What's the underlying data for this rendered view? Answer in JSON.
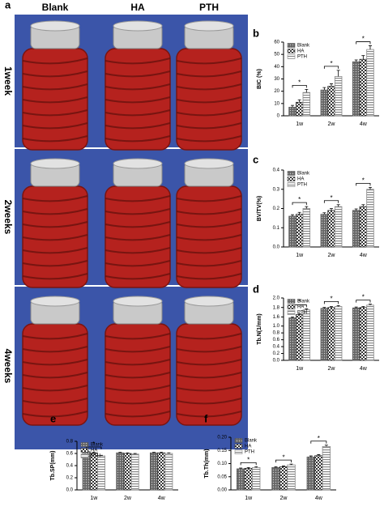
{
  "figure_a": {
    "label": "a",
    "columns": [
      "Blank",
      "HA",
      "PTH"
    ],
    "rows": [
      "1week",
      "2weeks",
      "4weeks"
    ]
  },
  "chart_data": [
    {
      "type": "bar",
      "label": "b",
      "ylabel": "BIC (%)",
      "categories": [
        "1w",
        "2w",
        "4w"
      ],
      "series": [
        {
          "name": "Blank",
          "color": "#555555",
          "pattern": "dots",
          "values": [
            7,
            21,
            44
          ],
          "errors": [
            1.5,
            2,
            1.5
          ]
        },
        {
          "name": "HA",
          "color": "#333333",
          "pattern": "checker",
          "values": [
            11,
            24,
            46
          ],
          "errors": [
            2,
            2,
            3
          ]
        },
        {
          "name": "PTH",
          "color": "#888888",
          "pattern": "stripes",
          "values": [
            19,
            32,
            54
          ],
          "errors": [
            2.5,
            5,
            3
          ]
        }
      ],
      "ylim": [
        0,
        60
      ],
      "yticks": [
        0,
        10,
        20,
        30,
        40,
        50,
        60
      ],
      "annotations": [
        "*",
        "*",
        "*"
      ]
    },
    {
      "type": "bar",
      "label": "c",
      "ylabel": "BV/TV(%)",
      "categories": [
        "1w",
        "2w",
        "4w"
      ],
      "series": [
        {
          "name": "Blank",
          "color": "#555555",
          "pattern": "dots",
          "values": [
            0.16,
            0.17,
            0.19
          ],
          "errors": [
            0.008,
            0.008,
            0.008
          ]
        },
        {
          "name": "HA",
          "color": "#333333",
          "pattern": "checker",
          "values": [
            0.17,
            0.19,
            0.21
          ],
          "errors": [
            0.01,
            0.01,
            0.01
          ]
        },
        {
          "name": "PTH",
          "color": "#888888",
          "pattern": "stripes",
          "values": [
            0.2,
            0.21,
            0.3
          ],
          "errors": [
            0.01,
            0.01,
            0.01
          ]
        }
      ],
      "ylim": [
        0,
        0.4
      ],
      "yticks": [
        {
          "value": 0,
          "label": "0.0"
        },
        0.1,
        0.2,
        0.3,
        0.4
      ],
      "annotations": [
        "*",
        "*",
        "*"
      ]
    },
    {
      "type": "bar",
      "label": "d",
      "ylabel": "Tb.N(1/mm)",
      "categories": [
        "1w",
        "2w",
        "4w"
      ],
      "series": [
        {
          "name": "Blank",
          "color": "#555555",
          "pattern": "dots",
          "values": [
            1.58,
            1.78,
            1.79
          ],
          "errors": [
            0.02,
            0.02,
            0.02
          ]
        },
        {
          "name": "HA",
          "color": "#333333",
          "pattern": "checker",
          "values": [
            1.65,
            1.8,
            1.8
          ],
          "errors": [
            0.02,
            0.02,
            0.02
          ]
        },
        {
          "name": "PTH",
          "color": "#888888",
          "pattern": "stripes",
          "values": [
            1.75,
            1.82,
            1.85
          ],
          "errors": [
            0.02,
            0.02,
            0.02
          ]
        }
      ],
      "ylim": [
        0,
        2.0
      ],
      "axis_break": [
        1.0,
        1.5
      ],
      "yticks": [
        {
          "value": 0,
          "label": "0.0"
        },
        0.2,
        0.4,
        0.6,
        0.8,
        {
          "value": 1,
          "label": "1.0"
        },
        1.6,
        1.8,
        {
          "value": 2,
          "label": "2.0"
        }
      ],
      "annotations": [
        "*",
        "*",
        "*"
      ]
    },
    {
      "type": "bar",
      "label": "e",
      "ylabel": "Tb.SP(mm)",
      "categories": [
        "1w",
        "2w",
        "4w"
      ],
      "series": [
        {
          "name": "Blank",
          "color": "#555555",
          "pattern": "dots",
          "values": [
            0.63,
            0.61,
            0.61
          ],
          "errors": [
            0.01,
            0.01,
            0.01
          ]
        },
        {
          "name": "HA",
          "color": "#333333",
          "pattern": "checker",
          "values": [
            0.61,
            0.6,
            0.61
          ],
          "errors": [
            0.01,
            0.01,
            0.01
          ]
        },
        {
          "name": "PTH",
          "color": "#888888",
          "pattern": "stripes",
          "values": [
            0.56,
            0.59,
            0.6
          ],
          "errors": [
            0.01,
            0.01,
            0.01
          ]
        }
      ],
      "ylim": [
        0,
        0.8
      ],
      "yticks": [
        {
          "value": 0,
          "label": "0.0"
        },
        0.2,
        0.4,
        0.6,
        0.8
      ],
      "annotations": [
        "*"
      ]
    },
    {
      "type": "bar",
      "label": "f",
      "ylabel": "Tb.Th(mm)",
      "categories": [
        "1w",
        "2w",
        "4w"
      ],
      "series": [
        {
          "name": "Blank",
          "color": "#555555",
          "pattern": "dots",
          "values": [
            0.08,
            0.085,
            0.125
          ],
          "errors": [
            0.003,
            0.003,
            0.004
          ]
        },
        {
          "name": "HA",
          "color": "#333333",
          "pattern": "checker",
          "values": [
            0.082,
            0.088,
            0.13
          ],
          "errors": [
            0.003,
            0.003,
            0.004
          ]
        },
        {
          "name": "PTH",
          "color": "#888888",
          "pattern": "stripes",
          "values": [
            0.085,
            0.095,
            0.165
          ],
          "errors": [
            0.003,
            0.003,
            0.005
          ]
        }
      ],
      "ylim": [
        0,
        0.2
      ],
      "yticks": [
        {
          "value": 0,
          "label": "0.00"
        },
        0.05,
        {
          "value": 0.1,
          "label": "0.10"
        },
        0.15,
        {
          "value": 0.2,
          "label": "0.20"
        }
      ],
      "annotations": [
        "*",
        "*",
        "*"
      ]
    }
  ]
}
